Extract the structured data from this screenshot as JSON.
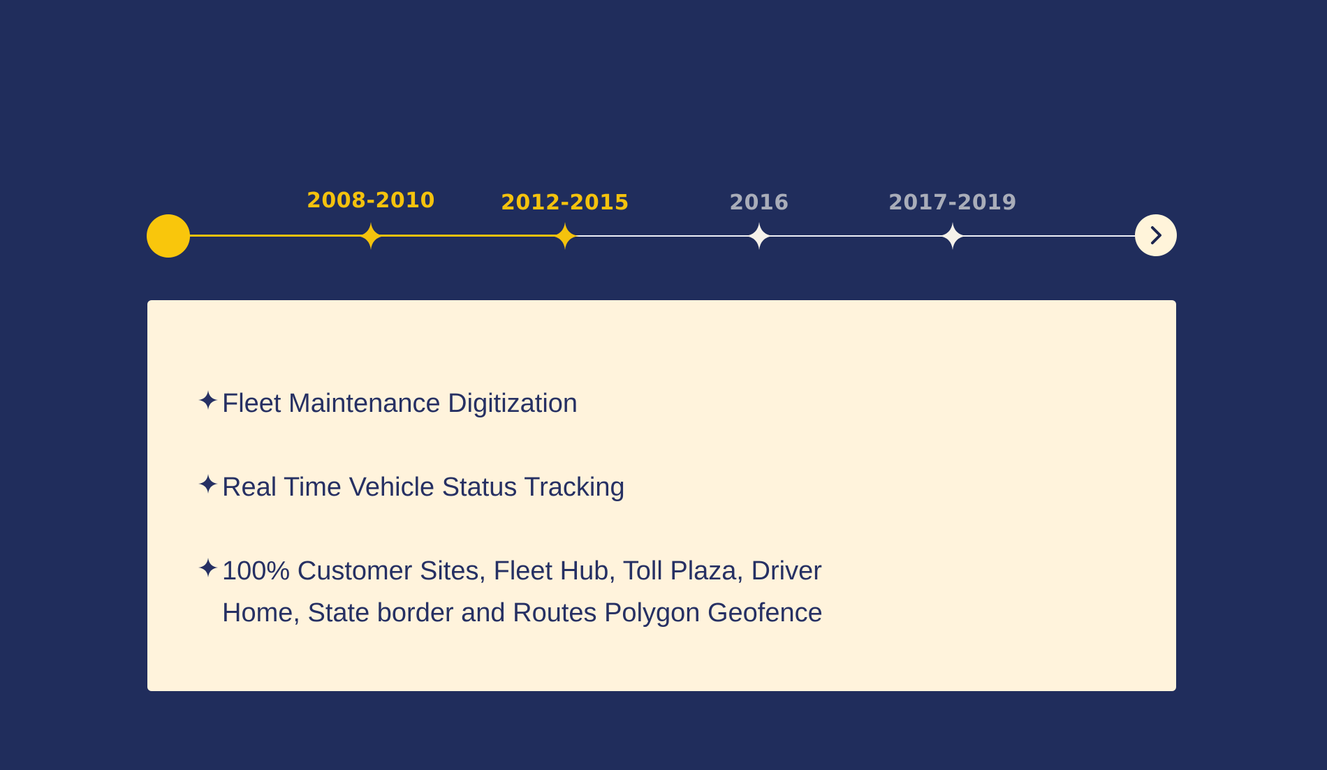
{
  "timeline": {
    "milestones": [
      {
        "label": "2008-2010",
        "state": "active"
      },
      {
        "label": "2012-2015",
        "state": "active"
      },
      {
        "label": "2016",
        "state": "inactive"
      },
      {
        "label": "2017-2019",
        "state": "inactive"
      }
    ],
    "next_icon": "chevron-right-icon"
  },
  "card": {
    "bullet_icon": "sparkle-star-icon",
    "features": [
      {
        "text": "Fleet Maintenance Digitization"
      },
      {
        "text": "Real Time Vehicle Status Tracking"
      },
      {
        "text": "100% Customer Sites, Fleet Hub, Toll Plaza, Driver Home, State border and Routes Polygon Geofence"
      }
    ]
  },
  "colors": {
    "background": "#202d5c",
    "accent": "#f4c20d",
    "card": "#fff3dc",
    "text": "#263063",
    "inactive": "#eef0f7"
  }
}
